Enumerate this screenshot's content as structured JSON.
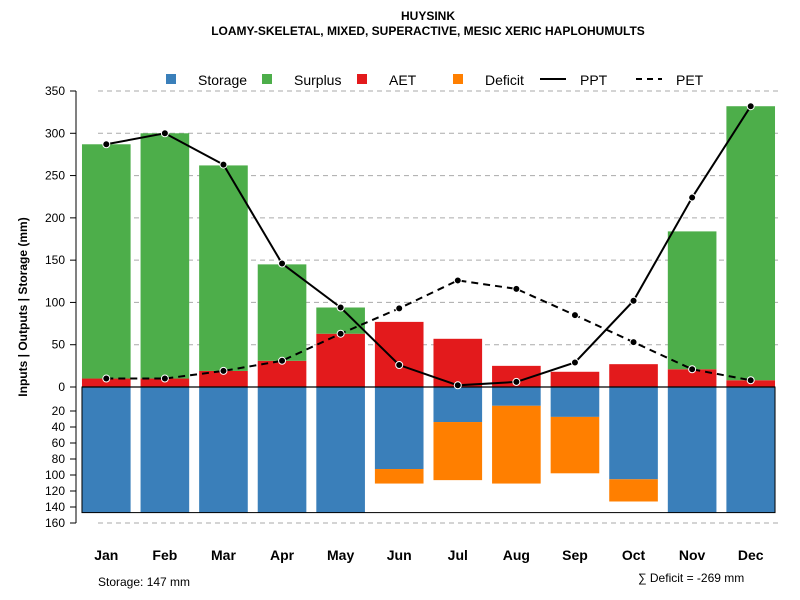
{
  "chart_data": {
    "type": "bar",
    "title": "HUYSINK",
    "subtitle": "LOAMY-SKELETAL, MIXED, SUPERACTIVE, MESIC XERIC HAPLOHUMULTS",
    "ylabel": "Inputs | Outputs | Storage    (mm)",
    "categories": [
      "Jan",
      "Feb",
      "Mar",
      "Apr",
      "May",
      "Jun",
      "Jul",
      "Aug",
      "Sep",
      "Oct",
      "Nov",
      "Dec"
    ],
    "ylim_upper": [
      0,
      350
    ],
    "ylim_lower": [
      0,
      160
    ],
    "upper_ticks": [
      0,
      50,
      100,
      150,
      200,
      250,
      300,
      350
    ],
    "lower_ticks": [
      20,
      40,
      60,
      80,
      100,
      120,
      140,
      160
    ],
    "lower_tick_labels": [
      "20",
      "40",
      "60",
      "80",
      "100",
      "120",
      "140",
      "160"
    ],
    "storage_capacity": 147,
    "colors": {
      "storage": "#3a7fba",
      "surplus": "#4dae4a",
      "aet": "#e31a1c",
      "deficit": "#ff7f00",
      "grid": "#aaaaaa"
    },
    "legend": {
      "storage": "Storage",
      "surplus": "Surplus",
      "aet": "AET",
      "deficit": "Deficit",
      "ppt": "PPT",
      "pet": "PET"
    },
    "series": [
      {
        "name": "AET",
        "values": [
          10,
          10,
          19,
          31,
          63,
          77,
          57,
          25,
          18,
          27,
          21,
          8
        ]
      },
      {
        "name": "Surplus",
        "values": [
          277,
          290,
          243,
          114,
          31,
          0,
          0,
          0,
          0,
          0,
          163,
          324
        ]
      },
      {
        "name": "Storage",
        "values": [
          147,
          147,
          147,
          147,
          147,
          96,
          41,
          22,
          35,
          108,
          147,
          147
        ]
      },
      {
        "name": "Deficit",
        "values": [
          0,
          0,
          0,
          0,
          0,
          17,
          68,
          91,
          66,
          26,
          0,
          0
        ]
      },
      {
        "name": "PPT",
        "values": [
          287,
          300,
          263,
          146,
          94,
          26,
          2,
          6,
          29,
          102,
          224,
          332
        ]
      },
      {
        "name": "PET",
        "values": [
          10,
          10,
          19,
          31,
          63,
          93,
          126,
          116,
          85,
          53,
          21,
          8
        ]
      }
    ],
    "footer_storage": "Storage: 147 mm",
    "footer_deficit": "∑ Deficit = -269 mm"
  }
}
